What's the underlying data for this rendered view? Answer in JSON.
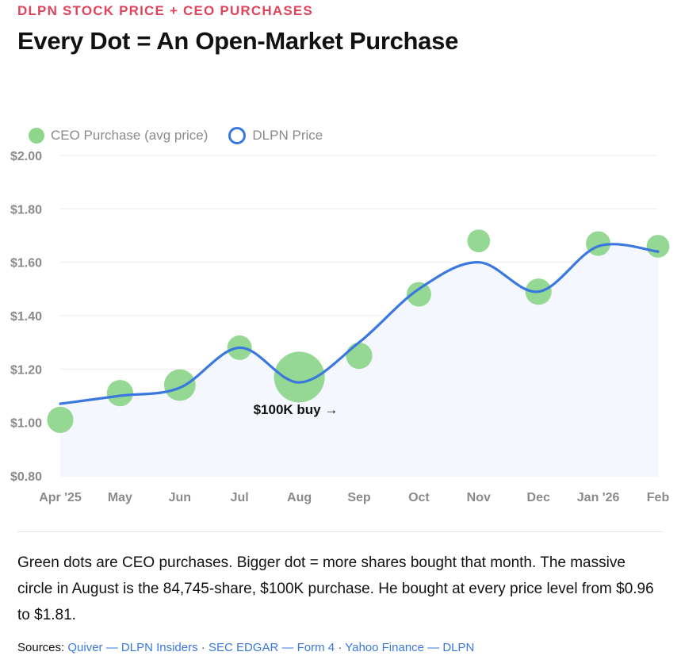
{
  "header": {
    "kicker": "DLPN STOCK PRICE + CEO PURCHASES",
    "title": "Every Dot = An Open-Market Purchase"
  },
  "legend": {
    "purchase_label": "CEO Purchase (avg price)",
    "price_label": "DLPN Price"
  },
  "colors": {
    "purchase": "#8fd68d",
    "price_line": "#3a78e0",
    "area_fill": "#f4f7fd",
    "kicker": "#e0435a"
  },
  "chart_data": {
    "type": "line",
    "categories": [
      "Apr '25",
      "May",
      "Jun",
      "Jul",
      "Aug",
      "Sep",
      "Oct",
      "Nov",
      "Dec",
      "Jan '26",
      "Feb"
    ],
    "ylim": [
      0.8,
      2.0
    ],
    "yticks": [
      0.8,
      1.0,
      1.2,
      1.4,
      1.6,
      1.8,
      2.0
    ],
    "ytick_labels": [
      "$0.80",
      "$1.00",
      "$1.20",
      "$1.40",
      "$1.60",
      "$1.80",
      "$2.00"
    ],
    "grid": true,
    "legend_position": "top-left",
    "series": [
      {
        "name": "DLPN Price",
        "kind": "line",
        "values": [
          1.07,
          1.1,
          1.13,
          1.28,
          1.15,
          1.3,
          1.5,
          1.6,
          1.49,
          1.66,
          1.64
        ]
      },
      {
        "name": "CEO Purchase (avg price)",
        "kind": "scatter",
        "values": [
          1.01,
          1.11,
          1.14,
          1.28,
          1.17,
          1.25,
          1.48,
          1.68,
          1.49,
          1.67,
          1.66
        ],
        "relative_size": [
          0.3,
          0.3,
          0.45,
          0.25,
          1.0,
          0.3,
          0.25,
          0.2,
          0.3,
          0.25,
          0.2
        ]
      }
    ],
    "annotations": [
      {
        "text": "$100K buy →",
        "category": "Aug"
      }
    ]
  },
  "caption": "Green dots are CEO purchases. Bigger dot = more shares bought that month. The massive circle in August is the 84,745-share, $100K purchase. He bought at every price level from $0.96 to $1.81.",
  "sources": {
    "label": "Sources:",
    "links": [
      "Quiver — DLPN Insiders",
      "SEC EDGAR — Form 4",
      "Yahoo Finance — DLPN"
    ],
    "separator": "·"
  }
}
